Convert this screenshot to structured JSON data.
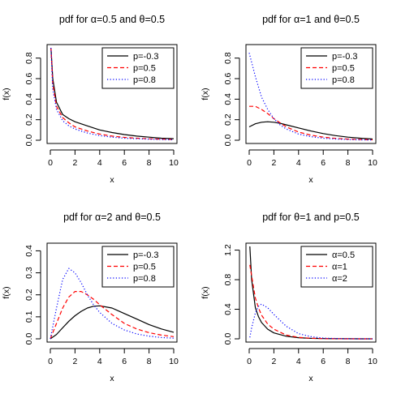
{
  "chart_data": [
    {
      "type": "line",
      "title": "pdf for α=0.5 and θ=0.5",
      "xlabel": "x",
      "ylabel": "f(x)",
      "xlim": [
        0,
        10
      ],
      "ylim": [
        0,
        0.9
      ],
      "xticks": [
        "0",
        "2",
        "4",
        "6",
        "8",
        "10"
      ],
      "yticks": [
        "0.0",
        "0.2",
        "0.4",
        "0.6",
        "0.8"
      ],
      "legend_position": "top-right",
      "x": [
        0.05,
        0.2,
        0.5,
        1,
        1.5,
        2,
        3,
        4,
        5,
        6,
        7,
        8,
        9,
        10
      ],
      "series": [
        {
          "name": "p=-0.3",
          "color": "#000000",
          "dash": "solid",
          "values": [
            0.9,
            0.6,
            0.37,
            0.25,
            0.21,
            0.18,
            0.14,
            0.1,
            0.075,
            0.055,
            0.04,
            0.03,
            0.02,
            0.015
          ]
        },
        {
          "name": "p=0.5",
          "color": "#ff0000",
          "dash": "dashed",
          "values": [
            0.9,
            0.55,
            0.33,
            0.22,
            0.17,
            0.13,
            0.09,
            0.06,
            0.04,
            0.028,
            0.02,
            0.014,
            0.01,
            0.007
          ]
        },
        {
          "name": "p=0.8",
          "color": "#0000ff",
          "dash": "dotted",
          "values": [
            0.9,
            0.5,
            0.3,
            0.19,
            0.14,
            0.11,
            0.07,
            0.045,
            0.03,
            0.02,
            0.014,
            0.01,
            0.007,
            0.005
          ]
        }
      ]
    },
    {
      "type": "line",
      "title": "pdf for α=1 and θ=0.5",
      "xlabel": "x",
      "ylabel": "f(x)",
      "xlim": [
        0,
        10
      ],
      "ylim": [
        0,
        0.9
      ],
      "xticks": [
        "0",
        "2",
        "4",
        "6",
        "8",
        "10"
      ],
      "yticks": [
        "0.0",
        "0.2",
        "0.4",
        "0.6",
        "0.8"
      ],
      "legend_position": "top-right",
      "x": [
        0,
        0.5,
        1,
        1.5,
        2,
        2.5,
        3,
        4,
        5,
        6,
        7,
        8,
        9,
        10
      ],
      "series": [
        {
          "name": "p=-0.3",
          "color": "#000000",
          "dash": "solid",
          "values": [
            0.13,
            0.16,
            0.175,
            0.18,
            0.175,
            0.165,
            0.15,
            0.12,
            0.09,
            0.065,
            0.045,
            0.03,
            0.02,
            0.012
          ]
        },
        {
          "name": "p=0.5",
          "color": "#ff0000",
          "dash": "dashed",
          "values": [
            0.33,
            0.33,
            0.3,
            0.26,
            0.21,
            0.17,
            0.13,
            0.08,
            0.05,
            0.03,
            0.018,
            0.011,
            0.007,
            0.004
          ]
        },
        {
          "name": "p=0.8",
          "color": "#0000ff",
          "dash": "dotted",
          "values": [
            0.85,
            0.62,
            0.42,
            0.3,
            0.21,
            0.15,
            0.11,
            0.06,
            0.035,
            0.02,
            0.012,
            0.007,
            0.004,
            0.002
          ]
        }
      ]
    },
    {
      "type": "line",
      "title": "pdf for α=2 and θ=0.5",
      "xlabel": "x",
      "ylabel": "f(x)",
      "xlim": [
        0,
        10
      ],
      "ylim": [
        0,
        0.42
      ],
      "xticks": [
        "0",
        "2",
        "4",
        "6",
        "8",
        "10"
      ],
      "yticks": [
        "0.0",
        "0.1",
        "0.2",
        "0.3",
        "0.4"
      ],
      "legend_position": "top-right",
      "x": [
        0,
        0.5,
        1,
        1.5,
        2,
        2.5,
        3,
        3.5,
        4,
        5,
        6,
        7,
        8,
        9,
        10
      ],
      "series": [
        {
          "name": "p=-0.3",
          "color": "#000000",
          "dash": "solid",
          "values": [
            0,
            0.02,
            0.05,
            0.08,
            0.105,
            0.125,
            0.14,
            0.148,
            0.15,
            0.14,
            0.115,
            0.09,
            0.065,
            0.045,
            0.03
          ]
        },
        {
          "name": "p=0.5",
          "color": "#ff0000",
          "dash": "dashed",
          "values": [
            0,
            0.07,
            0.14,
            0.19,
            0.215,
            0.215,
            0.2,
            0.18,
            0.155,
            0.11,
            0.07,
            0.045,
            0.028,
            0.017,
            0.01
          ]
        },
        {
          "name": "p=0.8",
          "color": "#0000ff",
          "dash": "dotted",
          "values": [
            0,
            0.14,
            0.27,
            0.32,
            0.3,
            0.255,
            0.2,
            0.155,
            0.12,
            0.07,
            0.04,
            0.022,
            0.012,
            0.006,
            0.003
          ]
        }
      ]
    },
    {
      "type": "line",
      "title": "pdf for θ=1 and p=0.5",
      "xlabel": "x",
      "ylabel": "f(x)",
      "xlim": [
        0,
        10
      ],
      "ylim": [
        0,
        1.25
      ],
      "xticks": [
        "0",
        "2",
        "4",
        "6",
        "8",
        "10"
      ],
      "yticks": [
        "0.0",
        "0.4",
        "0.8",
        "1.2"
      ],
      "legend_position": "top-right",
      "x": [
        0.05,
        0.2,
        0.5,
        0.75,
        1,
        1.5,
        2,
        3,
        4,
        5,
        6,
        7,
        8,
        9,
        10
      ],
      "series": [
        {
          "name": "α=0.5",
          "color": "#000000",
          "dash": "solid",
          "values": [
            1.25,
            0.8,
            0.42,
            0.3,
            0.22,
            0.13,
            0.08,
            0.035,
            0.015,
            0.007,
            0.003,
            0.001,
            0.001,
            0,
            0
          ]
        },
        {
          "name": "α=1",
          "color": "#ff0000",
          "dash": "dashed",
          "values": [
            1.0,
            0.85,
            0.55,
            0.42,
            0.32,
            0.2,
            0.13,
            0.05,
            0.02,
            0.008,
            0.003,
            0.001,
            0,
            0,
            0
          ]
        },
        {
          "name": "α=2",
          "color": "#0000ff",
          "dash": "dotted",
          "values": [
            0.02,
            0.15,
            0.35,
            0.44,
            0.47,
            0.42,
            0.33,
            0.17,
            0.07,
            0.03,
            0.01,
            0.004,
            0.001,
            0,
            0
          ]
        }
      ]
    }
  ]
}
